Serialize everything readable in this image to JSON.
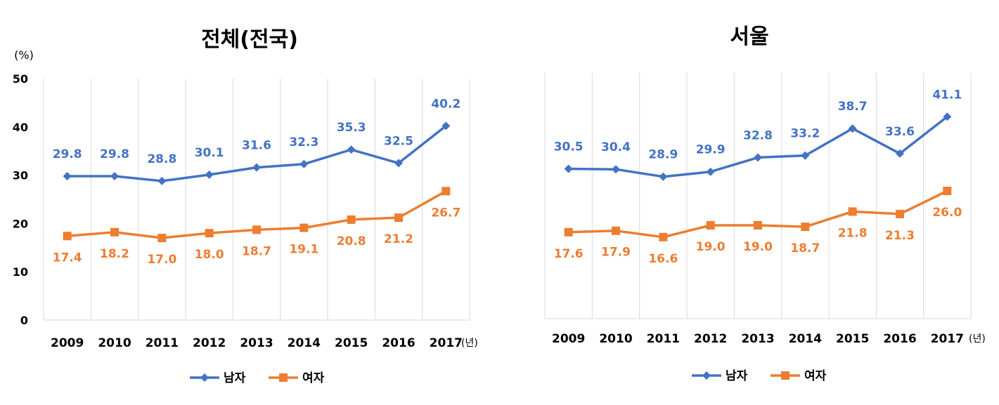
{
  "chart_data": [
    {
      "type": "line",
      "title": "전체(전국)",
      "y_unit": "(%)",
      "x_unit": "(년)",
      "categories": [
        "2009",
        "2010",
        "2011",
        "2012",
        "2013",
        "2014",
        "2015",
        "2016",
        "2017"
      ],
      "ylim": [
        0,
        50
      ],
      "y_ticks": [
        "0",
        "10",
        "20",
        "30",
        "40",
        "50"
      ],
      "grid": "vertical",
      "legend_position": "bottom",
      "series": [
        {
          "name": "남자",
          "color": "#4472C4",
          "marker": "diamond",
          "values": [
            29.8,
            29.8,
            28.8,
            30.1,
            31.6,
            32.3,
            35.3,
            32.5,
            40.2
          ],
          "labels": [
            "29.8",
            "29.8",
            "28.8",
            "30.1",
            "31.6",
            "32.3",
            "35.3",
            "32.5",
            "40.2"
          ]
        },
        {
          "name": "여자",
          "color": "#ED7D31",
          "marker": "square",
          "values": [
            17.4,
            18.2,
            17.0,
            18.0,
            18.7,
            19.1,
            20.8,
            21.2,
            26.7
          ],
          "labels": [
            "17.4",
            "18.2",
            "17.0",
            "18.0",
            "18.7",
            "19.1",
            "20.8",
            "21.2",
            "26.7"
          ]
        }
      ]
    },
    {
      "type": "line",
      "title": "서울",
      "x_unit": "(년)",
      "categories": [
        "2009",
        "2010",
        "2011",
        "2012",
        "2013",
        "2014",
        "2015",
        "2016",
        "2017"
      ],
      "ylim": [
        0,
        50
      ],
      "grid": "vertical",
      "legend_position": "bottom",
      "series": [
        {
          "name": "남자",
          "color": "#4472C4",
          "marker": "diamond",
          "values": [
            30.5,
            30.4,
            28.9,
            29.9,
            32.8,
            33.2,
            38.7,
            33.6,
            41.1
          ],
          "labels": [
            "30.5",
            "30.4",
            "28.9",
            "29.9",
            "32.8",
            "33.2",
            "38.7",
            "33.6",
            "41.1"
          ]
        },
        {
          "name": "여자",
          "color": "#ED7D31",
          "marker": "square",
          "values": [
            17.6,
            17.9,
            16.6,
            19.0,
            19.0,
            18.7,
            21.8,
            21.3,
            26.0
          ],
          "labels": [
            "17.6",
            "17.9",
            "16.6",
            "19.0",
            "19.0",
            "18.7",
            "21.8",
            "21.3",
            "26.0"
          ]
        }
      ]
    }
  ]
}
